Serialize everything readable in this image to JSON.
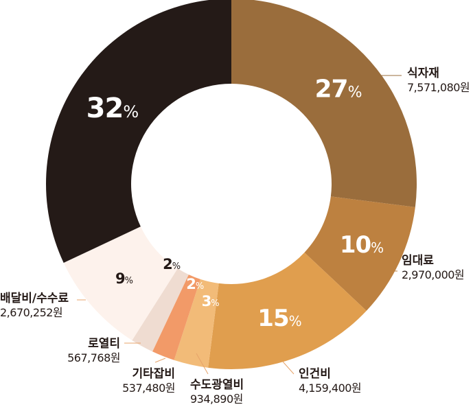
{
  "chart_data": {
    "type": "pie",
    "donut": true,
    "start": "top",
    "direction": "clockwise",
    "slices": [
      {
        "name": "식자재",
        "value_text": "7,571,080원",
        "percent": 27,
        "color": "#9a6d3c",
        "pct_color": "#ffffff"
      },
      {
        "name": "임대료",
        "value_text": "2,970,000원",
        "percent": 10,
        "color": "#bd8140",
        "pct_color": "#ffffff"
      },
      {
        "name": "인건비",
        "value_text": "4,159,400원",
        "percent": 15,
        "color": "#e09e4e",
        "pct_color": "#ffffff"
      },
      {
        "name": "수도광열비",
        "value_text": "934,890원",
        "percent": 3,
        "color": "#f2bb78",
        "pct_color": "#ffffff"
      },
      {
        "name": "기타잡비",
        "value_text": "537,480원",
        "percent": 2,
        "color": "#f29a68",
        "pct_color": "#ffffff"
      },
      {
        "name": "로열티",
        "value_text": "567,768원",
        "percent": 2,
        "color": "#efdcd1",
        "pct_color": "#231815"
      },
      {
        "name": "배달비/수수료",
        "value_text": "2,670,252원",
        "percent": 9,
        "color": "#fdf2ec",
        "pct_color": "#231815"
      },
      {
        "name": "",
        "value_text": "",
        "percent": 32,
        "color": "#241a17",
        "pct_color": "#ffffff"
      }
    ],
    "percent_suffix": "%",
    "leader_color": "#e7a36a"
  }
}
